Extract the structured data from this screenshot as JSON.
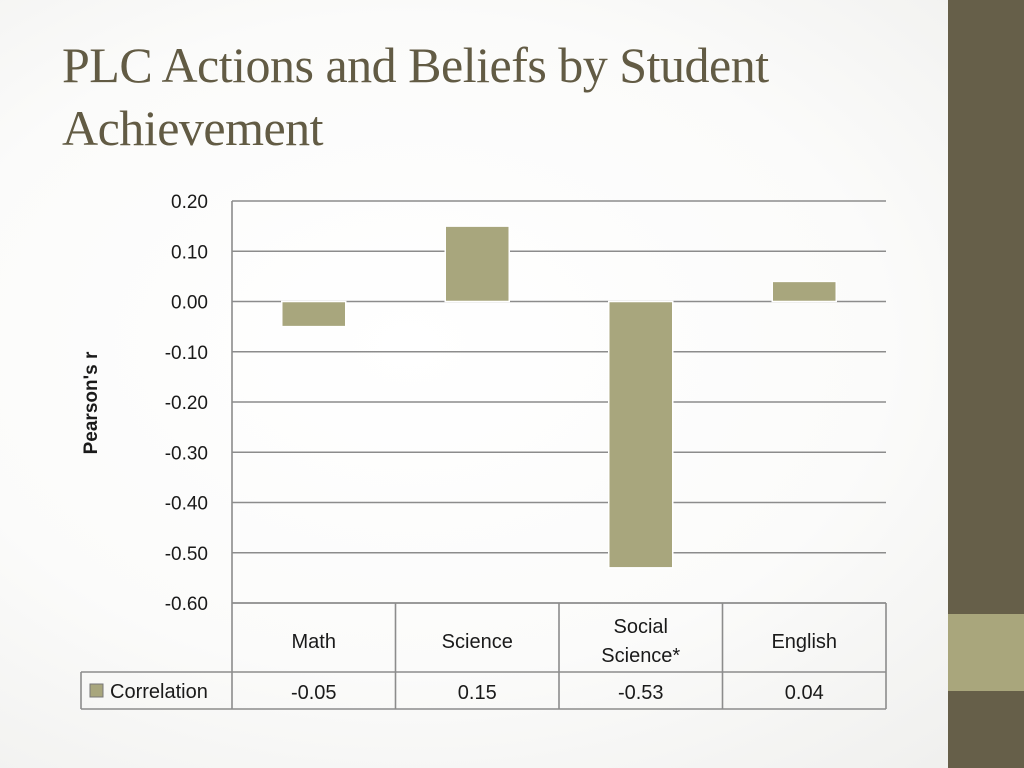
{
  "slide": {
    "title": "PLC Actions and Beliefs by Student Achievement"
  },
  "theme": {
    "title_color": "#625b44",
    "side_bar_color": "#665f49",
    "side_bar_accent_color": "#a9a67c",
    "bar_color": "#a8a67d",
    "gridline_color": "#8c8c8c",
    "text_color": "#1a1a1a"
  },
  "chart_data": {
    "type": "bar",
    "title": "",
    "xlabel": "",
    "ylabel": "Pearson's r",
    "ylim": [
      -0.6,
      0.2
    ],
    "y_ticks": [
      "0.20",
      "0.10",
      "0.00",
      "-0.10",
      "-0.20",
      "-0.30",
      "-0.40",
      "-0.50",
      "-0.60"
    ],
    "categories": [
      "Math",
      "Science",
      "Social Science*",
      "English"
    ],
    "series": [
      {
        "name": "Correlation",
        "values": [
          -0.05,
          0.15,
          -0.53,
          0.04
        ],
        "value_labels": [
          "-0.05",
          "0.15",
          "-0.53",
          "0.04"
        ]
      }
    ],
    "grid": true,
    "legend": "data-table-left"
  }
}
